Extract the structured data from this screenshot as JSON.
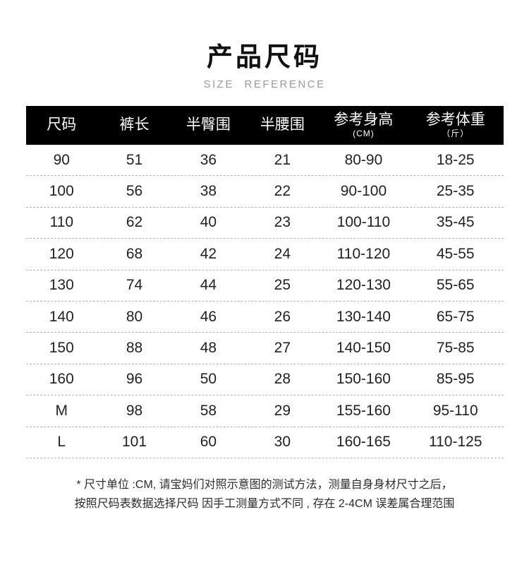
{
  "page": {
    "title": "产品尺码",
    "subtitle": "SIZE REFERENCE"
  },
  "table": {
    "columns": [
      {
        "label": "尺码",
        "sub": ""
      },
      {
        "label": "裤长",
        "sub": ""
      },
      {
        "label": "半臀围",
        "sub": ""
      },
      {
        "label": "半腰围",
        "sub": ""
      },
      {
        "label": "参考身高",
        "sub": "(CM)"
      },
      {
        "label": "参考体重",
        "sub": "（斤）"
      }
    ],
    "rows": [
      [
        "90",
        "51",
        "36",
        "21",
        "80-90",
        "18-25"
      ],
      [
        "100",
        "56",
        "38",
        "22",
        "90-100",
        "25-35"
      ],
      [
        "110",
        "62",
        "40",
        "23",
        "100-110",
        "35-45"
      ],
      [
        "120",
        "68",
        "42",
        "24",
        "110-120",
        "45-55"
      ],
      [
        "130",
        "74",
        "44",
        "25",
        "120-130",
        "55-65"
      ],
      [
        "140",
        "80",
        "46",
        "26",
        "130-140",
        "65-75"
      ],
      [
        "150",
        "88",
        "48",
        "27",
        "140-150",
        "75-85"
      ],
      [
        "160",
        "96",
        "50",
        "28",
        "150-160",
        "85-95"
      ],
      [
        "M",
        "98",
        "58",
        "29",
        "155-160",
        "95-110"
      ],
      [
        "L",
        "101",
        "60",
        "30",
        "160-165",
        "110-125"
      ]
    ]
  },
  "footer": {
    "line1": "* 尺寸单位 :CM, 请宝妈们对照示意图的测试方法，测量自身身材尺寸之后，",
    "line2": "按照尺码表数据选择尺码 因手工测量方式不同 , 存在 2-4CM 误差属合理范围"
  },
  "colors": {
    "header_bg": "#000000",
    "header_text": "#ffffff",
    "divider": "#b3b3b3",
    "subtitle": "#999999"
  }
}
